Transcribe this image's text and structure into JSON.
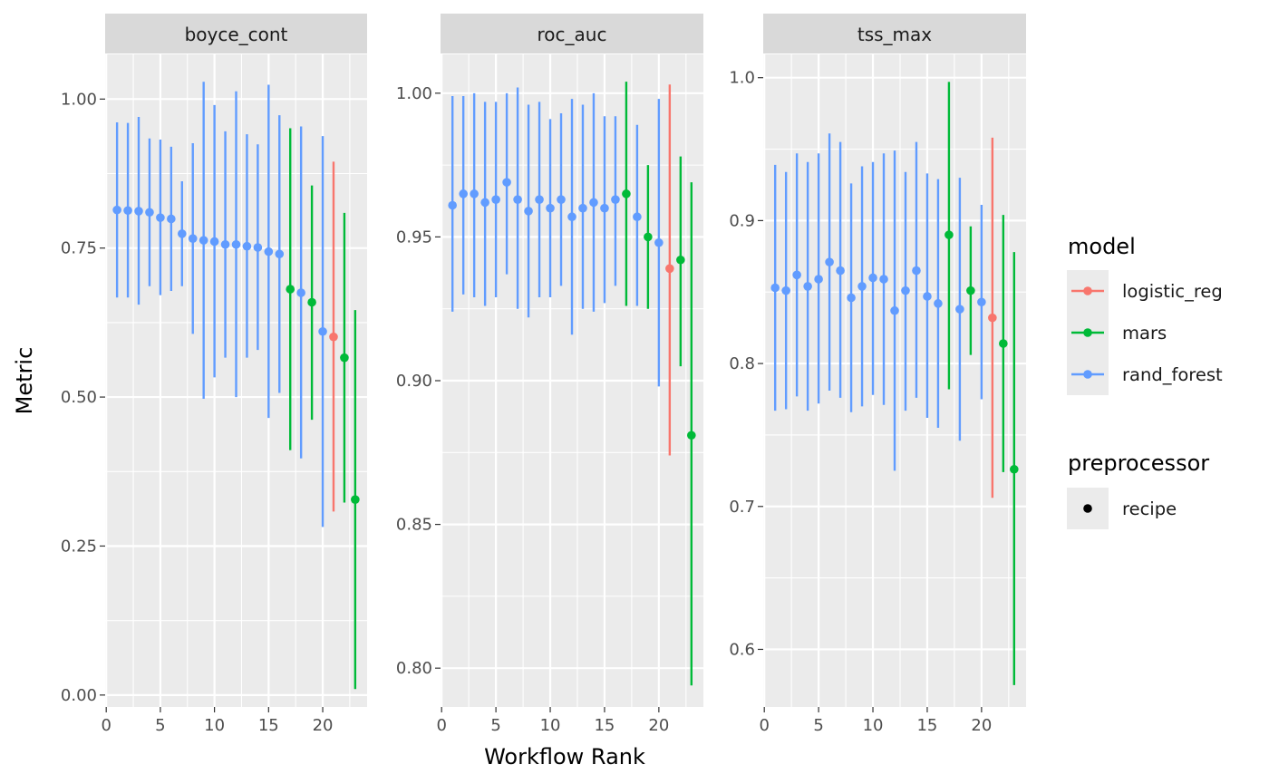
{
  "chart_data": {
    "type": "scatter",
    "xlabel": "Workflow Rank",
    "ylabel": "Metric",
    "grid": true,
    "legend_position": "right",
    "legends": {
      "model": {
        "title": "model",
        "items": [
          {
            "label": "logistic_reg",
            "color": "#F8766D"
          },
          {
            "label": "mars",
            "color": "#00BA38"
          },
          {
            "label": "rand_forest",
            "color": "#619CFF"
          }
        ]
      },
      "preprocessor": {
        "title": "preprocessor",
        "items": [
          {
            "label": "recipe",
            "color": "#000000"
          }
        ]
      }
    },
    "colors": {
      "logistic_reg": "#F8766D",
      "mars": "#00BA38",
      "rand_forest": "#619CFF"
    },
    "panels": [
      {
        "name": "boyce_cont",
        "xlim": [
          -0.1,
          24.1
        ],
        "ylim": [
          -0.02,
          1.075
        ],
        "xticks": [
          0,
          5,
          10,
          15,
          20
        ],
        "yticks": [
          0.0,
          0.25,
          0.5,
          0.75,
          1.0
        ],
        "ytick_labels": [
          "0.00",
          "0.25",
          "0.50",
          "0.75",
          "1.00"
        ],
        "points": [
          {
            "rank": 1,
            "model": "rand_forest",
            "mean": 0.814,
            "lower": 0.667,
            "upper": 0.961
          },
          {
            "rank": 2,
            "model": "rand_forest",
            "mean": 0.813,
            "lower": 0.667,
            "upper": 0.96
          },
          {
            "rank": 3,
            "model": "rand_forest",
            "mean": 0.812,
            "lower": 0.655,
            "upper": 0.97
          },
          {
            "rank": 4,
            "model": "rand_forest",
            "mean": 0.81,
            "lower": 0.686,
            "upper": 0.934
          },
          {
            "rank": 5,
            "model": "rand_forest",
            "mean": 0.801,
            "lower": 0.671,
            "upper": 0.932
          },
          {
            "rank": 6,
            "model": "rand_forest",
            "mean": 0.799,
            "lower": 0.678,
            "upper": 0.92
          },
          {
            "rank": 7,
            "model": "rand_forest",
            "mean": 0.774,
            "lower": 0.686,
            "upper": 0.862
          },
          {
            "rank": 8,
            "model": "rand_forest",
            "mean": 0.766,
            "lower": 0.606,
            "upper": 0.926
          },
          {
            "rank": 9,
            "model": "rand_forest",
            "mean": 0.763,
            "lower": 0.497,
            "upper": 1.029
          },
          {
            "rank": 10,
            "model": "rand_forest",
            "mean": 0.761,
            "lower": 0.533,
            "upper": 0.99
          },
          {
            "rank": 11,
            "model": "rand_forest",
            "mean": 0.756,
            "lower": 0.566,
            "upper": 0.946
          },
          {
            "rank": 12,
            "model": "rand_forest",
            "mean": 0.756,
            "lower": 0.5,
            "upper": 1.013
          },
          {
            "rank": 13,
            "model": "rand_forest",
            "mean": 0.753,
            "lower": 0.566,
            "upper": 0.941
          },
          {
            "rank": 14,
            "model": "rand_forest",
            "mean": 0.751,
            "lower": 0.579,
            "upper": 0.924
          },
          {
            "rank": 15,
            "model": "rand_forest",
            "mean": 0.744,
            "lower": 0.465,
            "upper": 1.024
          },
          {
            "rank": 16,
            "model": "rand_forest",
            "mean": 0.74,
            "lower": 0.507,
            "upper": 0.973
          },
          {
            "rank": 17,
            "model": "mars",
            "mean": 0.681,
            "lower": 0.411,
            "upper": 0.951
          },
          {
            "rank": 18,
            "model": "rand_forest",
            "mean": 0.675,
            "lower": 0.397,
            "upper": 0.954
          },
          {
            "rank": 19,
            "model": "mars",
            "mean": 0.659,
            "lower": 0.462,
            "upper": 0.855
          },
          {
            "rank": 20,
            "model": "rand_forest",
            "mean": 0.61,
            "lower": 0.282,
            "upper": 0.938
          },
          {
            "rank": 21,
            "model": "logistic_reg",
            "mean": 0.601,
            "lower": 0.308,
            "upper": 0.895
          },
          {
            "rank": 22,
            "model": "mars",
            "mean": 0.566,
            "lower": 0.323,
            "upper": 0.809
          },
          {
            "rank": 23,
            "model": "mars",
            "mean": 0.328,
            "lower": 0.01,
            "upper": 0.646
          }
        ]
      },
      {
        "name": "roc_auc",
        "xlim": [
          -0.1,
          24.1
        ],
        "ylim": [
          0.7865,
          1.0135
        ],
        "xticks": [
          0,
          5,
          10,
          15,
          20
        ],
        "yticks": [
          0.8,
          0.85,
          0.9,
          0.95,
          1.0
        ],
        "ytick_labels": [
          "0.80",
          "0.85",
          "0.90",
          "0.95",
          "1.00"
        ],
        "points": [
          {
            "rank": 1,
            "model": "rand_forest",
            "mean": 0.961,
            "lower": 0.924,
            "upper": 0.999
          },
          {
            "rank": 2,
            "model": "rand_forest",
            "mean": 0.965,
            "lower": 0.93,
            "upper": 0.999
          },
          {
            "rank": 3,
            "model": "rand_forest",
            "mean": 0.965,
            "lower": 0.929,
            "upper": 1.0
          },
          {
            "rank": 4,
            "model": "rand_forest",
            "mean": 0.962,
            "lower": 0.926,
            "upper": 0.997
          },
          {
            "rank": 5,
            "model": "rand_forest",
            "mean": 0.963,
            "lower": 0.929,
            "upper": 0.997
          },
          {
            "rank": 6,
            "model": "rand_forest",
            "mean": 0.969,
            "lower": 0.937,
            "upper": 1.0
          },
          {
            "rank": 7,
            "model": "rand_forest",
            "mean": 0.963,
            "lower": 0.925,
            "upper": 1.002
          },
          {
            "rank": 8,
            "model": "rand_forest",
            "mean": 0.959,
            "lower": 0.922,
            "upper": 0.996
          },
          {
            "rank": 9,
            "model": "rand_forest",
            "mean": 0.963,
            "lower": 0.929,
            "upper": 0.997
          },
          {
            "rank": 10,
            "model": "rand_forest",
            "mean": 0.96,
            "lower": 0.929,
            "upper": 0.991
          },
          {
            "rank": 11,
            "model": "rand_forest",
            "mean": 0.963,
            "lower": 0.933,
            "upper": 0.993
          },
          {
            "rank": 12,
            "model": "rand_forest",
            "mean": 0.957,
            "lower": 0.916,
            "upper": 0.998
          },
          {
            "rank": 13,
            "model": "rand_forest",
            "mean": 0.96,
            "lower": 0.925,
            "upper": 0.996
          },
          {
            "rank": 14,
            "model": "rand_forest",
            "mean": 0.962,
            "lower": 0.924,
            "upper": 1.0
          },
          {
            "rank": 15,
            "model": "rand_forest",
            "mean": 0.96,
            "lower": 0.927,
            "upper": 0.992
          },
          {
            "rank": 16,
            "model": "rand_forest",
            "mean": 0.963,
            "lower": 0.933,
            "upper": 0.992
          },
          {
            "rank": 17,
            "model": "mars",
            "mean": 0.965,
            "lower": 0.926,
            "upper": 1.004
          },
          {
            "rank": 18,
            "model": "rand_forest",
            "mean": 0.957,
            "lower": 0.926,
            "upper": 0.989
          },
          {
            "rank": 19,
            "model": "mars",
            "mean": 0.95,
            "lower": 0.925,
            "upper": 0.975
          },
          {
            "rank": 20,
            "model": "rand_forest",
            "mean": 0.948,
            "lower": 0.898,
            "upper": 0.998
          },
          {
            "rank": 21,
            "model": "logistic_reg",
            "mean": 0.939,
            "lower": 0.874,
            "upper": 1.003
          },
          {
            "rank": 22,
            "model": "mars",
            "mean": 0.942,
            "lower": 0.905,
            "upper": 0.978
          },
          {
            "rank": 23,
            "model": "mars",
            "mean": 0.881,
            "lower": 0.794,
            "upper": 0.969
          }
        ]
      },
      {
        "name": "tss_max",
        "xlim": [
          -0.1,
          24.1
        ],
        "ylim": [
          0.5597,
          1.0163
        ],
        "xticks": [
          0,
          5,
          10,
          15,
          20
        ],
        "yticks": [
          0.6,
          0.7,
          0.8,
          0.9,
          1.0
        ],
        "ytick_labels": [
          "0.6",
          "0.7",
          "0.8",
          "0.9",
          "1.0"
        ],
        "points": [
          {
            "rank": 1,
            "model": "rand_forest",
            "mean": 0.853,
            "lower": 0.767,
            "upper": 0.939
          },
          {
            "rank": 2,
            "model": "rand_forest",
            "mean": 0.851,
            "lower": 0.768,
            "upper": 0.934
          },
          {
            "rank": 3,
            "model": "rand_forest",
            "mean": 0.862,
            "lower": 0.777,
            "upper": 0.947
          },
          {
            "rank": 4,
            "model": "rand_forest",
            "mean": 0.854,
            "lower": 0.767,
            "upper": 0.941
          },
          {
            "rank": 5,
            "model": "rand_forest",
            "mean": 0.859,
            "lower": 0.772,
            "upper": 0.947
          },
          {
            "rank": 6,
            "model": "rand_forest",
            "mean": 0.871,
            "lower": 0.781,
            "upper": 0.961
          },
          {
            "rank": 7,
            "model": "rand_forest",
            "mean": 0.865,
            "lower": 0.776,
            "upper": 0.955
          },
          {
            "rank": 8,
            "model": "rand_forest",
            "mean": 0.846,
            "lower": 0.766,
            "upper": 0.926
          },
          {
            "rank": 9,
            "model": "rand_forest",
            "mean": 0.854,
            "lower": 0.77,
            "upper": 0.938
          },
          {
            "rank": 10,
            "model": "rand_forest",
            "mean": 0.86,
            "lower": 0.778,
            "upper": 0.941
          },
          {
            "rank": 11,
            "model": "rand_forest",
            "mean": 0.859,
            "lower": 0.771,
            "upper": 0.947
          },
          {
            "rank": 12,
            "model": "rand_forest",
            "mean": 0.837,
            "lower": 0.725,
            "upper": 0.949
          },
          {
            "rank": 13,
            "model": "rand_forest",
            "mean": 0.851,
            "lower": 0.767,
            "upper": 0.934
          },
          {
            "rank": 14,
            "model": "rand_forest",
            "mean": 0.865,
            "lower": 0.776,
            "upper": 0.955
          },
          {
            "rank": 15,
            "model": "rand_forest",
            "mean": 0.847,
            "lower": 0.762,
            "upper": 0.933
          },
          {
            "rank": 16,
            "model": "rand_forest",
            "mean": 0.842,
            "lower": 0.755,
            "upper": 0.929
          },
          {
            "rank": 17,
            "model": "mars",
            "mean": 0.89,
            "lower": 0.782,
            "upper": 0.997
          },
          {
            "rank": 18,
            "model": "rand_forest",
            "mean": 0.838,
            "lower": 0.746,
            "upper": 0.93
          },
          {
            "rank": 19,
            "model": "mars",
            "mean": 0.851,
            "lower": 0.806,
            "upper": 0.896
          },
          {
            "rank": 20,
            "model": "rand_forest",
            "mean": 0.843,
            "lower": 0.775,
            "upper": 0.911
          },
          {
            "rank": 21,
            "model": "logistic_reg",
            "mean": 0.832,
            "lower": 0.706,
            "upper": 0.958
          },
          {
            "rank": 22,
            "model": "mars",
            "mean": 0.814,
            "lower": 0.724,
            "upper": 0.904
          },
          {
            "rank": 23,
            "model": "mars",
            "mean": 0.726,
            "lower": 0.575,
            "upper": 0.878
          }
        ]
      }
    ]
  }
}
